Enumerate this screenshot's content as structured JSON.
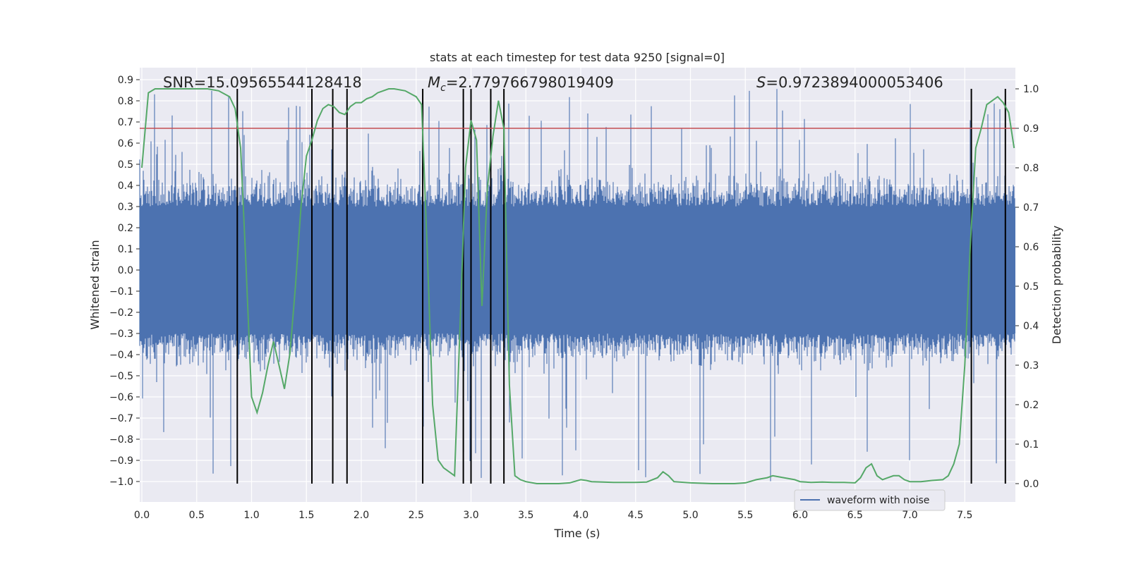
{
  "chart_data": {
    "type": "line",
    "title": "stats at each timestep for test data 9250 [signal=0]",
    "xlabel": "Time (s)",
    "ylabel_left": "Whitened strain",
    "ylabel_right": "Detection probability",
    "xlim": [
      0.0,
      8.0
    ],
    "ylim_left": [
      -1.09,
      0.95
    ],
    "ylim_right": [
      -0.05,
      1.03
    ],
    "x_ticks": [
      "0.0",
      "0.5",
      "1.0",
      "1.5",
      "2.0",
      "2.5",
      "3.0",
      "3.5",
      "4.0",
      "4.5",
      "5.0",
      "5.5",
      "6.0",
      "6.5",
      "7.0",
      "7.5"
    ],
    "y_left_ticks": [
      "0.9",
      "0.8",
      "0.7",
      "0.6",
      "0.5",
      "0.4",
      "0.3",
      "0.2",
      "0.1",
      "0.0",
      "−0.1",
      "−0.2",
      "−0.3",
      "−0.4",
      "−0.5",
      "−0.6",
      "−0.7",
      "−0.8",
      "−0.9",
      "−1.0"
    ],
    "y_right_ticks": [
      "1.0",
      "0.9",
      "0.8",
      "0.7",
      "0.6",
      "0.5",
      "0.4",
      "0.3",
      "0.2",
      "0.1",
      "0.0"
    ],
    "annotations": {
      "snr": "SNR=15.09565544128418",
      "mc_symbol": "M",
      "mc_sub": "c",
      "mc_value": "=2.779766798019409",
      "s_symbol": "S",
      "s_value": "=0.9723894000053406"
    },
    "threshold": 0.9,
    "vertical_lines": [
      0.87,
      1.55,
      1.74,
      1.87,
      2.56,
      2.93,
      3.0,
      3.18,
      3.3,
      7.56,
      7.87
    ],
    "series": [
      {
        "name": "waveform with noise",
        "axis": "left",
        "color": "#4c72b0",
        "noise_level": 0.22,
        "peak_max": 0.86,
        "trough_min": -1.0
      },
      {
        "name": "detection probability",
        "axis": "right",
        "color": "#55a868",
        "x": [
          0.0,
          0.06,
          0.12,
          0.2,
          0.3,
          0.4,
          0.5,
          0.6,
          0.7,
          0.8,
          0.85,
          0.9,
          0.95,
          1.0,
          1.05,
          1.1,
          1.15,
          1.2,
          1.25,
          1.3,
          1.35,
          1.4,
          1.45,
          1.5,
          1.55,
          1.6,
          1.65,
          1.7,
          1.75,
          1.8,
          1.85,
          1.9,
          1.95,
          2.0,
          2.05,
          2.1,
          2.15,
          2.2,
          2.25,
          2.3,
          2.4,
          2.5,
          2.55,
          2.6,
          2.65,
          2.7,
          2.75,
          2.8,
          2.85,
          2.9,
          2.95,
          3.0,
          3.05,
          3.1,
          3.15,
          3.2,
          3.25,
          3.3,
          3.35,
          3.4,
          3.45,
          3.5,
          3.6,
          3.7,
          3.8,
          3.9,
          4.0,
          4.05,
          4.1,
          4.2,
          4.3,
          4.4,
          4.5,
          4.6,
          4.7,
          4.75,
          4.8,
          4.85,
          5.0,
          5.2,
          5.4,
          5.5,
          5.6,
          5.7,
          5.75,
          5.85,
          5.95,
          6.0,
          6.1,
          6.2,
          6.3,
          6.4,
          6.5,
          6.55,
          6.6,
          6.65,
          6.7,
          6.75,
          6.8,
          6.85,
          6.9,
          6.95,
          7.0,
          7.1,
          7.2,
          7.3,
          7.35,
          7.4,
          7.45,
          7.5,
          7.55,
          7.6,
          7.65,
          7.7,
          7.75,
          7.8,
          7.85,
          7.9,
          7.95
        ],
        "y": [
          0.8,
          0.99,
          1.0,
          1.0,
          1.0,
          1.0,
          1.0,
          1.0,
          0.995,
          0.98,
          0.95,
          0.85,
          0.55,
          0.22,
          0.18,
          0.23,
          0.3,
          0.36,
          0.3,
          0.24,
          0.33,
          0.5,
          0.7,
          0.83,
          0.87,
          0.92,
          0.95,
          0.96,
          0.955,
          0.94,
          0.935,
          0.955,
          0.965,
          0.965,
          0.975,
          0.98,
          0.99,
          0.995,
          1.0,
          1.0,
          0.995,
          0.98,
          0.96,
          0.6,
          0.2,
          0.06,
          0.04,
          0.03,
          0.02,
          0.4,
          0.8,
          0.92,
          0.87,
          0.45,
          0.75,
          0.88,
          0.97,
          0.9,
          0.25,
          0.02,
          0.01,
          0.005,
          0.0,
          0.0,
          0.0,
          0.002,
          0.01,
          0.008,
          0.005,
          0.004,
          0.003,
          0.003,
          0.003,
          0.004,
          0.015,
          0.03,
          0.02,
          0.005,
          0.002,
          0.0,
          0.0,
          0.002,
          0.01,
          0.015,
          0.02,
          0.015,
          0.01,
          0.005,
          0.003,
          0.004,
          0.003,
          0.003,
          0.002,
          0.015,
          0.04,
          0.05,
          0.02,
          0.01,
          0.015,
          0.02,
          0.02,
          0.01,
          0.005,
          0.005,
          0.008,
          0.01,
          0.02,
          0.05,
          0.1,
          0.3,
          0.6,
          0.85,
          0.9,
          0.96,
          0.97,
          0.98,
          0.965,
          0.94,
          0.85
        ]
      }
    ],
    "legend": {
      "label": "waveform with noise",
      "position": "bottom-right"
    },
    "grid": true,
    "colors": {
      "background": "#eaeaf2",
      "grid": "#ffffff",
      "threshold": "#c44e52",
      "vlines": "#000000"
    }
  }
}
